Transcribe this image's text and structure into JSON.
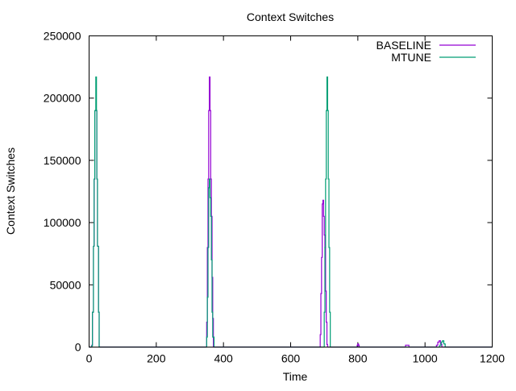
{
  "chart_data": {
    "type": "line",
    "title": "Context Switches",
    "xlabel": "Time",
    "ylabel": "Context Switches",
    "xlim": [
      0,
      1200
    ],
    "ylim": [
      0,
      250000
    ],
    "xticks": [
      0,
      200,
      400,
      600,
      800,
      1000,
      1200
    ],
    "yticks": [
      0,
      50000,
      100000,
      150000,
      200000,
      250000
    ],
    "legend_position": "top-right",
    "grid": false,
    "series": [
      {
        "name": "BASELINE",
        "color": "#9400d3",
        "x": [
          0,
          8,
          10,
          13,
          15,
          17,
          20,
          22,
          23,
          25,
          28,
          30,
          348,
          350,
          352,
          354,
          356,
          358,
          360,
          362,
          364,
          366,
          368,
          370,
          686,
          688,
          690,
          692,
          694,
          696,
          698,
          700,
          702,
          704,
          706,
          708,
          710,
          796,
          798,
          800,
          802,
          804,
          940,
          942,
          950,
          952,
          1030,
          1034,
          1038,
          1042,
          1046,
          1050,
          1200
        ],
        "y": [
          0,
          1500,
          28000,
          81000,
          135000,
          190000,
          190000,
          190000,
          135000,
          81000,
          28000,
          0,
          0,
          20000,
          80000,
          135000,
          190000,
          217000,
          190000,
          135000,
          105000,
          56000,
          23000,
          0,
          0,
          10000,
          43000,
          72000,
          115000,
          118000,
          105000,
          90000,
          80000,
          45000,
          20000,
          2000,
          0,
          0,
          1500,
          2500,
          1500,
          0,
          0,
          1500,
          1500,
          0,
          0,
          1500,
          4000,
          5000,
          2500,
          0,
          0
        ]
      },
      {
        "name": "MTUNE",
        "color": "#009e73",
        "x": [
          0,
          8,
          10,
          13,
          15,
          17,
          20,
          22,
          23,
          25,
          28,
          30,
          348,
          350,
          352,
          354,
          356,
          358,
          360,
          362,
          364,
          366,
          368,
          372,
          698,
          700,
          702,
          704,
          706,
          708,
          710,
          712,
          714,
          716,
          718,
          1040,
          1044,
          1048,
          1052,
          1056,
          1060,
          1200
        ],
        "y": [
          0,
          1000,
          28000,
          81000,
          135000,
          190000,
          217000,
          190000,
          135000,
          81000,
          28000,
          0,
          0,
          8000,
          40000,
          80000,
          128000,
          135000,
          120000,
          105000,
          70000,
          28000,
          8000,
          0,
          0,
          28000,
          80000,
          135000,
          190000,
          217000,
          190000,
          135000,
          80000,
          28000,
          0,
          0,
          1500,
          4000,
          5000,
          2500,
          0,
          0
        ]
      }
    ]
  }
}
